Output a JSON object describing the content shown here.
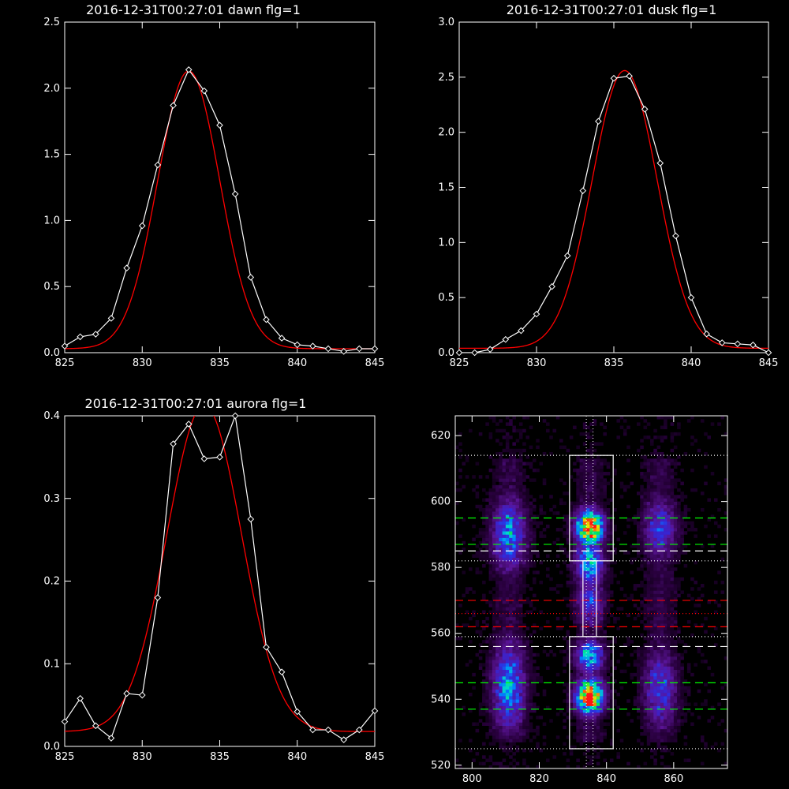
{
  "colors": {
    "background": "#000000",
    "axes": "#ffffff",
    "observed": "#ffffff",
    "fit": "#ff0000",
    "green_lines": "#00ff00",
    "red_lines": "#ff0000",
    "white_lines": "#ffffff"
  },
  "chart_data": [
    {
      "type": "line",
      "title": "2016-12-31T00:27:01 dawn flg=1",
      "xlim": [
        825,
        845
      ],
      "ylim": [
        0,
        2.5
      ],
      "xticks": [
        "825",
        "830",
        "835",
        "840",
        "845"
      ],
      "yticks": [
        "0.0",
        "0.5",
        "1.0",
        "1.5",
        "2.0",
        "2.5"
      ],
      "series": [
        {
          "marker": "diamond",
          "x": [
            825,
            826,
            827,
            828,
            829,
            830,
            831,
            832,
            833,
            834,
            835,
            836,
            837,
            838,
            839,
            840,
            841,
            842,
            843,
            844,
            845
          ],
          "y": [
            0.05,
            0.12,
            0.14,
            0.26,
            0.64,
            0.96,
            1.42,
            1.87,
            2.14,
            1.98,
            1.72,
            1.2,
            0.57,
            0.25,
            0.11,
            0.06,
            0.05,
            0.03,
            0.01,
            0.03,
            0.03
          ]
        },
        {
          "style": "fit-line",
          "gauss": {
            "amp": 2.1,
            "mu": 833.0,
            "sigma": 2.0,
            "offset": 0.03
          }
        }
      ]
    },
    {
      "type": "line",
      "title": "2016-12-31T00:27:01 dusk flg=1",
      "xlim": [
        825,
        845
      ],
      "ylim": [
        0,
        3.0
      ],
      "xticks": [
        "825",
        "830",
        "835",
        "840",
        "845"
      ],
      "yticks": [
        "0.0",
        "0.5",
        "1.0",
        "1.5",
        "2.0",
        "2.5",
        "3.0"
      ],
      "series": [
        {
          "marker": "diamond",
          "x": [
            825,
            826,
            827,
            828,
            829,
            830,
            831,
            832,
            833,
            834,
            835,
            836,
            837,
            838,
            839,
            840,
            841,
            842,
            843,
            844,
            845
          ],
          "y": [
            0.0,
            0.0,
            0.03,
            0.12,
            0.2,
            0.35,
            0.6,
            0.88,
            1.47,
            2.1,
            2.49,
            2.51,
            2.21,
            1.72,
            1.06,
            0.5,
            0.17,
            0.09,
            0.08,
            0.07,
            0.0
          ]
        },
        {
          "style": "fit-line",
          "gauss": {
            "amp": 2.52,
            "mu": 835.7,
            "sigma": 2.1,
            "offset": 0.04
          }
        }
      ]
    },
    {
      "type": "line",
      "title": "2016-12-31T00:27:01 aurora flg=1",
      "xlim": [
        825,
        845
      ],
      "ylim": [
        0,
        0.4
      ],
      "xticks": [
        "825",
        "830",
        "835",
        "840",
        "845"
      ],
      "yticks": [
        "0.0",
        "0.1",
        "0.2",
        "0.3",
        "0.4"
      ],
      "series": [
        {
          "marker": "diamond",
          "x": [
            825,
            826,
            827,
            828,
            829,
            830,
            831,
            832,
            833,
            834,
            835,
            836,
            837,
            838,
            839,
            840,
            841,
            842,
            843,
            844,
            845
          ],
          "y": [
            0.03,
            0.058,
            0.025,
            0.01,
            0.064,
            0.062,
            0.18,
            0.366,
            0.39,
            0.348,
            0.35,
            0.4,
            0.275,
            0.12,
            0.09,
            0.042,
            0.02,
            0.02,
            0.008,
            0.02,
            0.043
          ]
        },
        {
          "style": "fit-line",
          "gauss": {
            "amp": 0.395,
            "mu": 834.0,
            "sigma": 2.4,
            "offset": 0.018
          }
        }
      ]
    },
    {
      "type": "heatmap",
      "xlim": [
        795,
        876
      ],
      "ylim": [
        519,
        626
      ],
      "xticks": [
        "800",
        "820",
        "840",
        "860"
      ],
      "yticks": [
        "520",
        "540",
        "560",
        "580",
        "600",
        "620"
      ],
      "xtick_values": [
        800,
        820,
        840,
        860
      ],
      "ytick_values": [
        520,
        540,
        560,
        580,
        600,
        620
      ],
      "emission_columns": [
        {
          "x": 811,
          "width": 3.5,
          "blobs": [
            {
              "y": 590,
              "sy": 8,
              "amp": 0.55
            },
            {
              "y": 544,
              "sy": 10,
              "amp": 0.55
            }
          ]
        },
        {
          "x": 835,
          "width": 3.0,
          "blobs": [
            {
              "y": 592,
              "sy": 4,
              "amp": 1.0
            },
            {
              "y": 582,
              "sy": 6,
              "amp": 0.6
            },
            {
              "y": 570,
              "sy": 6,
              "amp": 0.4
            },
            {
              "y": 553,
              "sy": 4,
              "amp": 0.6
            },
            {
              "y": 541,
              "sy": 4,
              "amp": 1.0
            }
          ]
        },
        {
          "x": 856,
          "width": 3.5,
          "blobs": [
            {
              "y": 592,
              "sy": 7,
              "amp": 0.42
            },
            {
              "y": 543,
              "sy": 9,
              "amp": 0.42
            }
          ]
        }
      ],
      "boxes": [
        {
          "x0": 829,
          "x1": 842,
          "y0": 582,
          "y1": 614
        },
        {
          "x0": 833,
          "x1": 837,
          "y0": 559,
          "y1": 582
        },
        {
          "x0": 829,
          "x1": 842,
          "y0": 525,
          "y1": 559
        }
      ],
      "hlines": [
        {
          "y": 614,
          "color": "white",
          "style": "dotted"
        },
        {
          "y": 595,
          "color": "green",
          "style": "dashed"
        },
        {
          "y": 587,
          "color": "green",
          "style": "dashed"
        },
        {
          "y": 585,
          "color": "white",
          "style": "dashed"
        },
        {
          "y": 582,
          "color": "white",
          "style": "dotted"
        },
        {
          "y": 570,
          "color": "red",
          "style": "dashed"
        },
        {
          "y": 566,
          "color": "red",
          "style": "dotted"
        },
        {
          "y": 562,
          "color": "red",
          "style": "dashed"
        },
        {
          "y": 559,
          "color": "white",
          "style": "dotted"
        },
        {
          "y": 556,
          "color": "white",
          "style": "dashed"
        },
        {
          "y": 545,
          "color": "green",
          "style": "dashed"
        },
        {
          "y": 537,
          "color": "green",
          "style": "dashed"
        },
        {
          "y": 525,
          "color": "white",
          "style": "dotted"
        }
      ],
      "vlines": [
        {
          "x": 834,
          "color": "white",
          "style": "dotted"
        },
        {
          "x": 836,
          "color": "white",
          "style": "dotted"
        }
      ]
    }
  ]
}
